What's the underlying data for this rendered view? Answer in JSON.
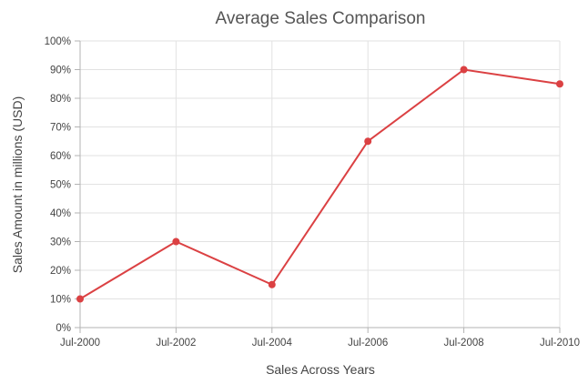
{
  "chart_data": {
    "type": "line",
    "title": "Average Sales Comparison",
    "xlabel": "Sales Across Years",
    "ylabel": "Sales Amount in millions (USD)",
    "categories": [
      "Jul-2000",
      "Jul-2002",
      "Jul-2004",
      "Jul-2006",
      "Jul-2008",
      "Jul-2010"
    ],
    "series": [
      {
        "values": [
          10,
          30,
          15,
          65,
          90,
          85
        ],
        "color": "#db4143"
      }
    ],
    "ylim": [
      0,
      100
    ],
    "y_ticks": [
      "0%",
      "10%",
      "20%",
      "30%",
      "40%",
      "50%",
      "60%",
      "70%",
      "80%",
      "90%",
      "100%"
    ],
    "y_tick_values": [
      0,
      10,
      20,
      30,
      40,
      50,
      60,
      70,
      80,
      90,
      100
    ],
    "grid": true,
    "legend": "none",
    "markers": true
  }
}
